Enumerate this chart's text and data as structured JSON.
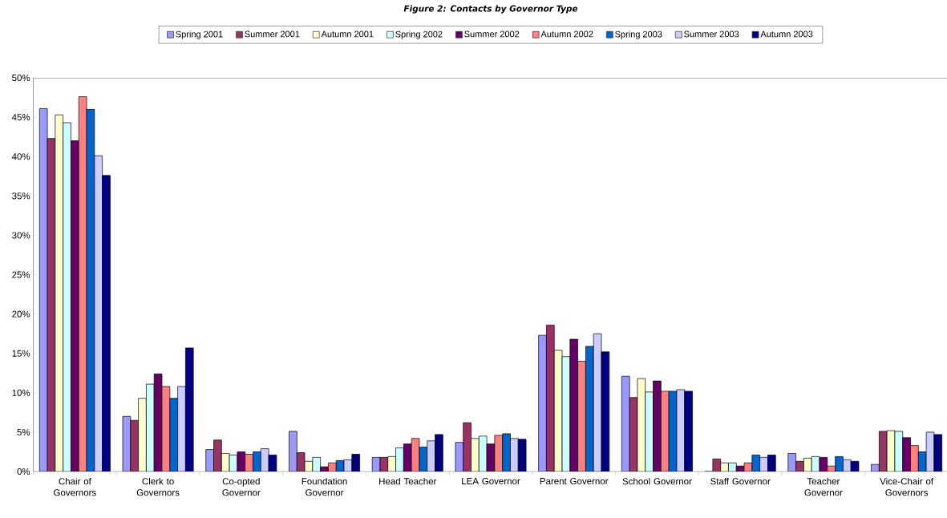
{
  "chart_data": {
    "type": "bar",
    "title": "Figure 2: Contacts by Governor Type",
    "categories": [
      "Chair of Governors",
      "Clerk to Governors",
      "Co-opted Governor",
      "Foundation Governor",
      "Head Teacher",
      "LEA Governor",
      "Parent Governor",
      "School Governor",
      "Staff Governor",
      "Teacher Governor",
      "Vice-Chair of Governors"
    ],
    "series": [
      {
        "name": "Spring 2001",
        "color": "#9999ff",
        "values": [
          46.1,
          7.0,
          2.8,
          5.1,
          1.8,
          3.7,
          17.3,
          12.1,
          0,
          2.3,
          0.9
        ]
      },
      {
        "name": "Summer 2001",
        "color": "#993366",
        "values": [
          42.3,
          6.5,
          4.0,
          2.4,
          1.8,
          6.2,
          18.6,
          9.4,
          1.6,
          1.3,
          5.1
        ]
      },
      {
        "name": "Autumn 2001",
        "color": "#ffffcc",
        "values": [
          45.3,
          9.3,
          2.3,
          1.3,
          1.9,
          4.2,
          15.4,
          11.8,
          1.1,
          1.7,
          5.2
        ]
      },
      {
        "name": "Spring 2002",
        "color": "#ccffff",
        "values": [
          44.3,
          11.1,
          2.1,
          1.8,
          3.0,
          4.5,
          14.6,
          10.1,
          1.1,
          1.9,
          5.1
        ]
      },
      {
        "name": "Summer 2002",
        "color": "#660066",
        "values": [
          42.0,
          12.4,
          2.5,
          0.6,
          3.5,
          3.5,
          16.8,
          11.5,
          0.7,
          1.8,
          4.3
        ]
      },
      {
        "name": "Autumn 2002",
        "color": "#ff8080",
        "values": [
          47.6,
          10.8,
          2.2,
          1.1,
          4.2,
          4.6,
          14.0,
          10.2,
          1.1,
          0.7,
          3.3
        ]
      },
      {
        "name": "Spring 2003",
        "color": "#0066cc",
        "values": [
          46.0,
          9.3,
          2.5,
          1.4,
          3.1,
          4.8,
          15.9,
          10.2,
          2.1,
          1.9,
          2.5
        ]
      },
      {
        "name": "Summer 2003",
        "color": "#ccccff",
        "values": [
          40.1,
          10.8,
          2.9,
          1.5,
          3.9,
          4.2,
          17.5,
          10.4,
          1.8,
          1.5,
          5.0
        ]
      },
      {
        "name": "Autumn 2003",
        "color": "#000080",
        "values": [
          37.6,
          15.7,
          2.1,
          2.2,
          4.7,
          4.1,
          15.2,
          10.2,
          2.1,
          1.3,
          4.7
        ]
      }
    ],
    "ylim": [
      0,
      50
    ],
    "yticks": [
      {
        "value": 0,
        "label": "0%"
      },
      {
        "value": 5,
        "label": "5%"
      },
      {
        "value": 10,
        "label": "10%"
      },
      {
        "value": 15,
        "label": "15%"
      },
      {
        "value": 20,
        "label": "20%"
      },
      {
        "value": 25,
        "label": "25%"
      },
      {
        "value": 30,
        "label": "30%"
      },
      {
        "value": 35,
        "label": "35%"
      },
      {
        "value": 40,
        "label": "40%"
      },
      {
        "value": 45,
        "label": "45%"
      },
      {
        "value": 50,
        "label": "50%"
      }
    ],
    "legend": "top"
  }
}
